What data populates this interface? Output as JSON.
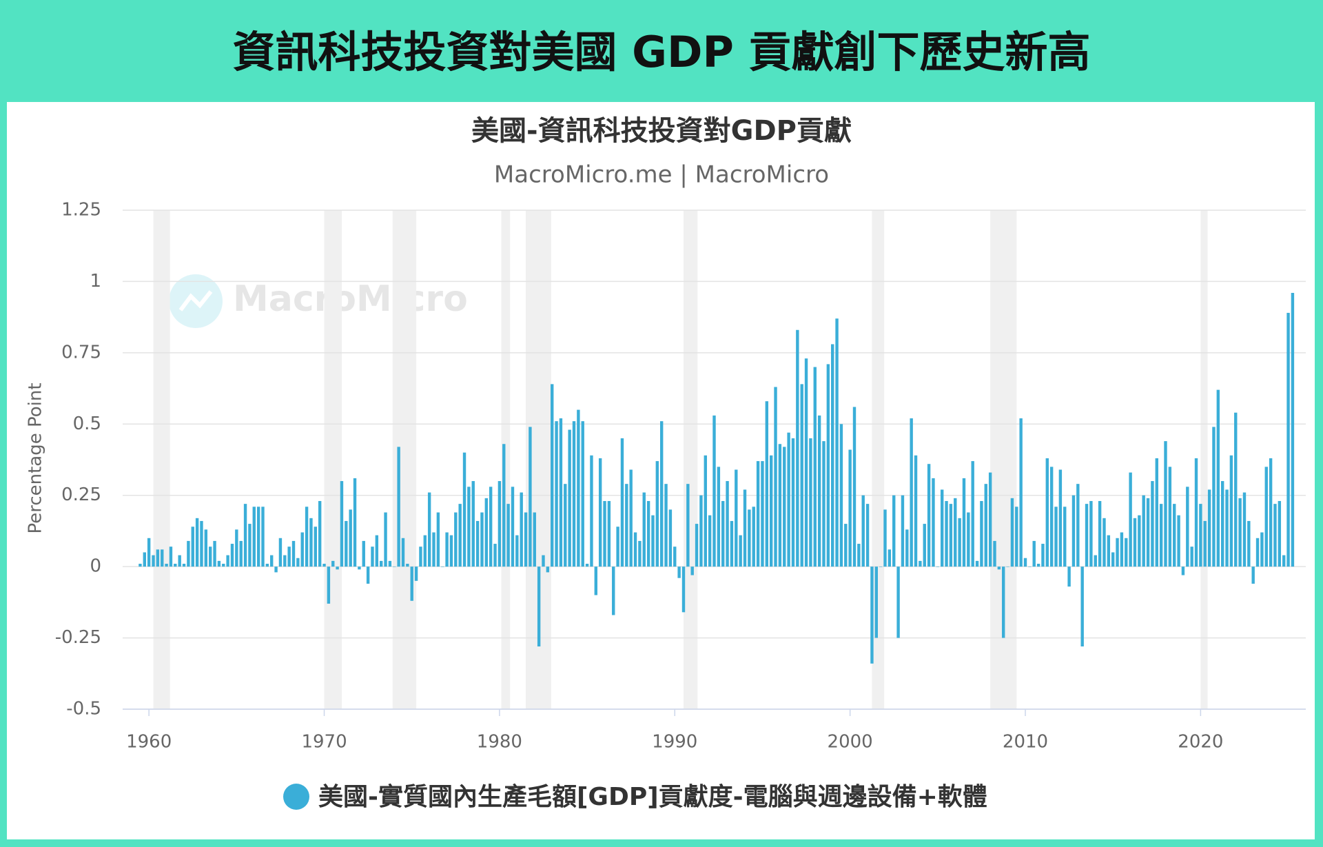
{
  "header": {
    "title": "資訊科技投資對美國 GDP 貢獻創下歷史新高"
  },
  "chart_data": {
    "type": "bar",
    "title": "美國-資訊科技投資對GDP貢獻",
    "subtitle": "MacroMicro.me | MacroMicro",
    "watermark": "MacroMicro",
    "y_label": "Percentage Point",
    "xlim": [
      1958.5,
      2026
    ],
    "xticks": [
      1960,
      1970,
      1980,
      1990,
      2000,
      2010,
      2020
    ],
    "ylim": [
      -0.5,
      1.25
    ],
    "yticks": [
      1.25,
      1,
      0.75,
      0.5,
      0.25,
      0,
      -0.25,
      -0.5
    ],
    "grid": true,
    "recessions": [
      [
        1960.25,
        1961.2
      ],
      [
        1970.0,
        1971.0
      ],
      [
        1973.9,
        1975.25
      ],
      [
        1980.1,
        1980.6
      ],
      [
        1981.5,
        1982.95
      ],
      [
        1990.5,
        1991.3
      ],
      [
        2001.25,
        2001.95
      ],
      [
        2008.0,
        2009.5
      ],
      [
        2020.0,
        2020.4
      ]
    ],
    "x": [
      1959.5,
      1959.75,
      1960,
      1960.25,
      1960.5,
      1960.75,
      1961,
      1961.25,
      1961.5,
      1961.75,
      1962,
      1962.25,
      1962.5,
      1962.75,
      1963,
      1963.25,
      1963.5,
      1963.75,
      1964,
      1964.25,
      1964.5,
      1964.75,
      1965,
      1965.25,
      1965.5,
      1965.75,
      1966,
      1966.25,
      1966.5,
      1966.75,
      1967,
      1967.25,
      1967.5,
      1967.75,
      1968,
      1968.25,
      1968.5,
      1968.75,
      1969,
      1969.25,
      1969.5,
      1969.75,
      1970,
      1970.25,
      1970.5,
      1970.75,
      1971,
      1971.25,
      1971.5,
      1971.75,
      1972,
      1972.25,
      1972.5,
      1972.75,
      1973,
      1973.25,
      1973.5,
      1973.75,
      1974,
      1974.25,
      1974.5,
      1974.75,
      1975,
      1975.25,
      1975.5,
      1975.75,
      1976,
      1976.25,
      1976.5,
      1976.75,
      1977,
      1977.25,
      1977.5,
      1977.75,
      1978,
      1978.25,
      1978.5,
      1978.75,
      1979,
      1979.25,
      1979.5,
      1979.75,
      1980,
      1980.25,
      1980.5,
      1980.75,
      1981,
      1981.25,
      1981.5,
      1981.75,
      1982,
      1982.25,
      1982.5,
      1982.75,
      1983,
      1983.25,
      1983.5,
      1983.75,
      1984,
      1984.25,
      1984.5,
      1984.75,
      1985,
      1985.25,
      1985.5,
      1985.75,
      1986,
      1986.25,
      1986.5,
      1986.75,
      1987,
      1987.25,
      1987.5,
      1987.75,
      1988,
      1988.25,
      1988.5,
      1988.75,
      1989,
      1989.25,
      1989.5,
      1989.75,
      1990,
      1990.25,
      1990.5,
      1990.75,
      1991,
      1991.25,
      1991.5,
      1991.75,
      1992,
      1992.25,
      1992.5,
      1992.75,
      1993,
      1993.25,
      1993.5,
      1993.75,
      1994,
      1994.25,
      1994.5,
      1994.75,
      1995,
      1995.25,
      1995.5,
      1995.75,
      1996,
      1996.25,
      1996.5,
      1996.75,
      1997,
      1997.25,
      1997.5,
      1997.75,
      1998,
      1998.25,
      1998.5,
      1998.75,
      1999,
      1999.25,
      1999.5,
      1999.75,
      2000,
      2000.25,
      2000.5,
      2000.75,
      2001,
      2001.25,
      2001.5,
      2001.75,
      2002,
      2002.25,
      2002.5,
      2002.75,
      2003,
      2003.25,
      2003.5,
      2003.75,
      2004,
      2004.25,
      2004.5,
      2004.75,
      2005,
      2005.25,
      2005.5,
      2005.75,
      2006,
      2006.25,
      2006.5,
      2006.75,
      2007,
      2007.25,
      2007.5,
      2007.75,
      2008,
      2008.25,
      2008.5,
      2008.75,
      2009,
      2009.25,
      2009.5,
      2009.75,
      2010,
      2010.25,
      2010.5,
      2010.75,
      2011,
      2011.25,
      2011.5,
      2011.75,
      2012,
      2012.25,
      2012.5,
      2012.75,
      2013,
      2013.25,
      2013.5,
      2013.75,
      2014,
      2014.25,
      2014.5,
      2014.75,
      2015,
      2015.25,
      2015.5,
      2015.75,
      2016,
      2016.25,
      2016.5,
      2016.75,
      2017,
      2017.25,
      2017.5,
      2017.75,
      2018,
      2018.25,
      2018.5,
      2018.75,
      2019,
      2019.25,
      2019.5,
      2019.75,
      2020,
      2020.25,
      2020.5,
      2020.75,
      2021,
      2021.25,
      2021.5,
      2021.75,
      2022,
      2022.25,
      2022.5,
      2022.75,
      2023,
      2023.25,
      2023.5,
      2023.75,
      2024,
      2024.25,
      2024.5,
      2024.75,
      2025,
      2025.25
    ],
    "series": [
      {
        "name": "美國-實質國內生產毛額[GDP]貢獻度-電腦與週邊設備+軟體",
        "color": "#3aaed8",
        "values": [
          0.01,
          0.05,
          0.1,
          0.04,
          0.06,
          0.06,
          0.01,
          0.07,
          0.01,
          0.04,
          0.01,
          0.09,
          0.14,
          0.17,
          0.16,
          0.13,
          0.07,
          0.09,
          0.02,
          0.01,
          0.04,
          0.08,
          0.13,
          0.09,
          0.22,
          0.15,
          0.21,
          0.21,
          0.21,
          0.01,
          0.04,
          -0.02,
          0.1,
          0.04,
          0.07,
          0.09,
          0.03,
          0.12,
          0.21,
          0.17,
          0.14,
          0.23,
          0.01,
          -0.13,
          0.02,
          -0.01,
          0.3,
          0.16,
          0.2,
          0.31,
          -0.01,
          0.09,
          -0.06,
          0.07,
          0.11,
          0.02,
          0.19,
          0.02,
          0.0,
          0.42,
          0.1,
          0.01,
          -0.12,
          -0.05,
          0.07,
          0.11,
          0.26,
          0.12,
          0.19,
          0.0,
          0.12,
          0.11,
          0.19,
          0.22,
          0.4,
          0.28,
          0.3,
          0.16,
          0.19,
          0.24,
          0.28,
          0.08,
          0.3,
          0.43,
          0.22,
          0.28,
          0.11,
          0.26,
          0.19,
          0.49,
          0.19,
          -0.28,
          0.04,
          -0.02,
          0.64,
          0.51,
          0.52,
          0.29,
          0.48,
          0.51,
          0.55,
          0.51,
          0.01,
          0.39,
          -0.1,
          0.38,
          0.23,
          0.23,
          -0.17,
          0.14,
          0.45,
          0.29,
          0.34,
          0.12,
          0.09,
          0.26,
          0.23,
          0.18,
          0.37,
          0.51,
          0.29,
          0.2,
          0.07,
          -0.04,
          -0.16,
          0.29,
          -0.03,
          0.15,
          0.25,
          0.39,
          0.18,
          0.53,
          0.35,
          0.23,
          0.3,
          0.16,
          0.34,
          0.11,
          0.27,
          0.2,
          0.21,
          0.37,
          0.37,
          0.58,
          0.39,
          0.63,
          0.43,
          0.42,
          0.47,
          0.45,
          0.83,
          0.64,
          0.73,
          0.45,
          0.7,
          0.53,
          0.44,
          0.71,
          0.78,
          0.87,
          0.5,
          0.15,
          0.41,
          0.56,
          0.08,
          0.25,
          0.22,
          -0.34,
          -0.25,
          0.0,
          0.2,
          0.06,
          0.25,
          -0.25,
          0.25,
          0.13,
          0.52,
          0.39,
          0.02,
          0.15,
          0.36,
          0.31,
          0.0,
          0.27,
          0.23,
          0.22,
          0.24,
          0.17,
          0.31,
          0.19,
          0.37,
          0.02,
          0.23,
          0.29,
          0.33,
          0.09,
          -0.01,
          -0.25,
          0.0,
          0.24,
          0.21,
          0.52,
          0.03,
          0.0,
          0.09,
          0.01,
          0.08,
          0.38,
          0.35,
          0.21,
          0.34,
          0.21,
          -0.07,
          0.25,
          0.29,
          -0.28,
          0.22,
          0.23,
          0.04,
          0.23,
          0.17,
          0.11,
          0.05,
          0.1,
          0.12,
          0.1,
          0.33,
          0.17,
          0.18,
          0.25,
          0.24,
          0.3,
          0.38,
          0.22,
          0.44,
          0.35,
          0.22,
          0.18,
          -0.03,
          0.28,
          0.07,
          0.38,
          0.22,
          0.16,
          0.27,
          0.49,
          0.62,
          0.3,
          0.27,
          0.39,
          0.54,
          0.24,
          0.26,
          0.16,
          -0.06,
          0.1,
          0.12,
          0.35,
          0.38,
          0.22,
          0.23,
          0.04,
          0.89,
          0.96
        ]
      }
    ]
  }
}
